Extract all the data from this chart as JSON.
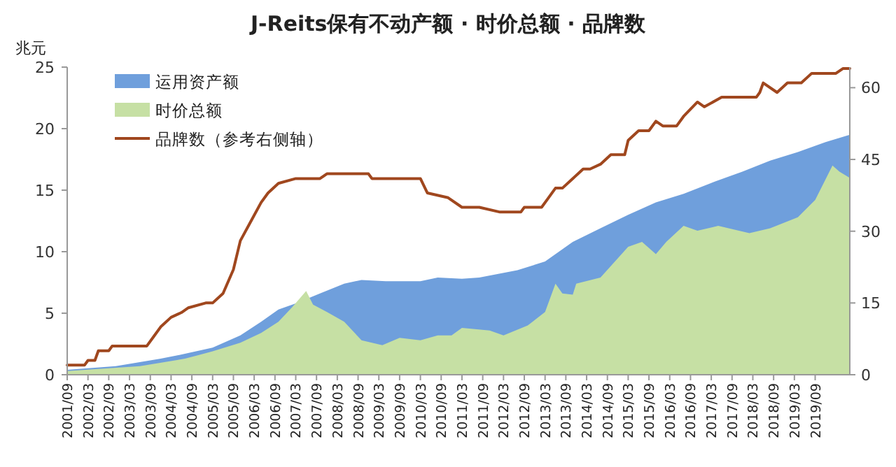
{
  "chart_data": {
    "type": "area",
    "title": "J-Reits保有不动产额 · 时价总额 · 品牌数",
    "ylabel": "兆元",
    "legend": "top left",
    "xlim": [
      "2001-09",
      "2020-07"
    ],
    "ylim": [
      0,
      25
    ],
    "yticks": [
      0,
      5,
      10,
      15,
      20,
      25
    ],
    "y2lim": [
      0,
      64.3
    ],
    "y2ticks": [
      0,
      15,
      30,
      45,
      60
    ],
    "xticks": [
      {
        "value": "2001-09",
        "label": "2001/09"
      },
      {
        "value": "2002-03",
        "label": "2002/03"
      },
      {
        "value": "2002-09",
        "label": "2002/09"
      },
      {
        "value": "2003-03",
        "label": "2003/03"
      },
      {
        "value": "2003-09",
        "label": "2003/09"
      },
      {
        "value": "2004-03",
        "label": "2004/03"
      },
      {
        "value": "2004-09",
        "label": "2004/09"
      },
      {
        "value": "2005-03",
        "label": "2005/03"
      },
      {
        "value": "2005-09",
        "label": "2005/09"
      },
      {
        "value": "2006-03",
        "label": "2006/03"
      },
      {
        "value": "2006-09",
        "label": "2006/09"
      },
      {
        "value": "2007-03",
        "label": "2007/03"
      },
      {
        "value": "2007-09",
        "label": "2007/09"
      },
      {
        "value": "2008-03",
        "label": "2008/03"
      },
      {
        "value": "2008-09",
        "label": "2008/09"
      },
      {
        "value": "2009-03",
        "label": "2009/03"
      },
      {
        "value": "2009-09",
        "label": "2009/09"
      },
      {
        "value": "2010-03",
        "label": "2010/03"
      },
      {
        "value": "2010-09",
        "label": "2010/09"
      },
      {
        "value": "2011-03",
        "label": "2011/03"
      },
      {
        "value": "2011-09",
        "label": "2011/09"
      },
      {
        "value": "2012-03",
        "label": "2012/03"
      },
      {
        "value": "2012-09",
        "label": "2012/09"
      },
      {
        "value": "2013-03",
        "label": "2013/03"
      },
      {
        "value": "2013-09",
        "label": "2013/09"
      },
      {
        "value": "2014-03",
        "label": "2014/03"
      },
      {
        "value": "2014-09",
        "label": "2014/09"
      },
      {
        "value": "2015-03",
        "label": "2015/03"
      },
      {
        "value": "2015-09",
        "label": "2015/09"
      },
      {
        "value": "2016-03",
        "label": "2016/03"
      },
      {
        "value": "2016-09",
        "label": "2016/09"
      },
      {
        "value": "2017-03",
        "label": "2017/03"
      },
      {
        "value": "2017-09",
        "label": "2017/09"
      },
      {
        "value": "2018-03",
        "label": "2018/03"
      },
      {
        "value": "2018-09",
        "label": "2018/09"
      },
      {
        "value": "2019-03",
        "label": "2019/03"
      },
      {
        "value": "2019-09",
        "label": "2019/09"
      }
    ],
    "series": [
      {
        "name": "运用资产额",
        "type": "area",
        "color": "#6f9fdc",
        "x": [
          "2001-09",
          "2002-11",
          "2003-12",
          "2004-07",
          "2005-03",
          "2005-11",
          "2006-05",
          "2006-10",
          "2007-03",
          "2007-10",
          "2008-05",
          "2008-10",
          "2009-05",
          "2010-03",
          "2010-08",
          "2011-03",
          "2011-08",
          "2012-07",
          "2013-03",
          "2013-11",
          "2014-07",
          "2015-03",
          "2015-11",
          "2016-07",
          "2017-04",
          "2017-12",
          "2018-08",
          "2019-04",
          "2019-12",
          "2020-07"
        ],
        "values": [
          0.4,
          0.7,
          1.3,
          1.7,
          2.2,
          3.2,
          4.3,
          5.3,
          5.8,
          6.6,
          7.4,
          7.7,
          7.6,
          7.6,
          7.9,
          7.8,
          7.9,
          8.5,
          9.2,
          10.8,
          11.9,
          13.0,
          14.0,
          14.7,
          15.7,
          16.5,
          17.4,
          18.1,
          18.9,
          19.5
        ]
      },
      {
        "name": "时价总额",
        "type": "area",
        "color": "#c6e0a4",
        "x": [
          "2001-09",
          "2003-06",
          "2004-07",
          "2005-03",
          "2005-11",
          "2006-05",
          "2006-10",
          "2007-02",
          "2007-06",
          "2007-08",
          "2007-12",
          "2008-05",
          "2008-10",
          "2009-01",
          "2009-04",
          "2009-09",
          "2010-03",
          "2010-08",
          "2010-12",
          "2011-03",
          "2011-11",
          "2012-03",
          "2012-10",
          "2013-03",
          "2013-06",
          "2013-08",
          "2013-11",
          "2013-12",
          "2014-07",
          "2015-03",
          "2015-07",
          "2015-11",
          "2016-02",
          "2016-07",
          "2016-11",
          "2017-05",
          "2018-02",
          "2018-08",
          "2019-04",
          "2019-09",
          "2020-02",
          "2020-04",
          "2020-07"
        ],
        "values": [
          0.3,
          0.7,
          1.3,
          1.9,
          2.6,
          3.4,
          4.3,
          5.5,
          6.8,
          5.7,
          5.1,
          4.3,
          2.8,
          2.6,
          2.4,
          3.0,
          2.8,
          3.2,
          3.2,
          3.8,
          3.6,
          3.2,
          4.0,
          5.1,
          7.4,
          6.6,
          6.5,
          7.4,
          7.9,
          10.4,
          10.8,
          9.8,
          10.8,
          12.1,
          11.7,
          12.1,
          11.5,
          11.9,
          12.8,
          14.2,
          17.0,
          16.5,
          16.0
        ]
      },
      {
        "name": "品牌数（参考右侧轴）",
        "type": "line",
        "axis": "y2",
        "color": "#a0471e",
        "x": [
          "2001-09",
          "2002-02",
          "2002-03",
          "2002-05",
          "2002-06",
          "2002-09",
          "2002-10",
          "2003-08",
          "2003-10",
          "2003-12",
          "2004-03",
          "2004-06",
          "2004-08",
          "2005-01",
          "2005-03",
          "2005-06",
          "2005-09",
          "2005-11",
          "2006-02",
          "2006-05",
          "2006-07",
          "2006-10",
          "2007-03",
          "2007-10",
          "2007-12",
          "2008-12",
          "2009-01",
          "2010-03",
          "2010-05",
          "2010-11",
          "2011-03",
          "2011-08",
          "2012-02",
          "2012-08",
          "2012-09",
          "2013-02",
          "2013-04",
          "2013-06",
          "2013-08",
          "2013-11",
          "2014-02",
          "2014-04",
          "2014-07",
          "2014-10",
          "2015-02",
          "2015-03",
          "2015-06",
          "2015-09",
          "2015-11",
          "2016-01",
          "2016-05",
          "2016-07",
          "2016-11",
          "2017-01",
          "2017-06",
          "2018-04",
          "2018-05",
          "2018-06",
          "2018-10",
          "2019-01",
          "2019-05",
          "2019-08",
          "2020-03",
          "2020-05",
          "2020-07"
        ],
        "values": [
          2,
          2,
          3,
          3,
          5,
          5,
          6,
          6,
          8,
          10,
          12,
          13,
          14,
          15,
          15,
          17,
          22,
          28,
          32,
          36,
          38,
          40,
          41,
          41,
          42,
          42,
          41,
          41,
          38,
          37,
          35,
          35,
          34,
          34,
          35,
          35,
          37,
          39,
          39,
          41,
          43,
          43,
          44,
          46,
          46,
          49,
          51,
          51,
          53,
          52,
          52,
          54,
          57,
          56,
          58,
          58,
          59,
          61,
          59,
          61,
          61,
          63,
          63,
          64,
          64
        ]
      }
    ]
  }
}
